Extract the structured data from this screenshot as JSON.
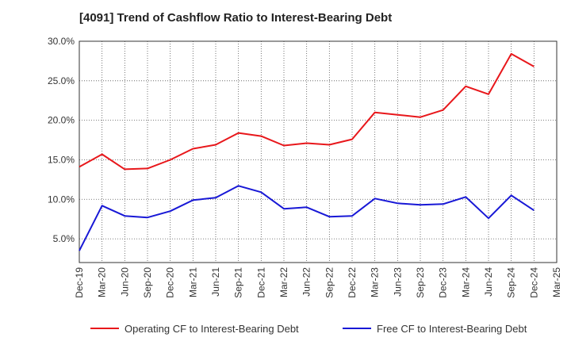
{
  "chart_data": {
    "type": "line",
    "title": "[4091]  Trend of Cashflow Ratio to Interest-Bearing Debt",
    "xlabel": "",
    "ylabel": "",
    "ylim": [
      2.0,
      30.0
    ],
    "y_ticks": [
      "5.0%",
      "10.0%",
      "15.0%",
      "20.0%",
      "25.0%",
      "30.0%"
    ],
    "y_tick_values": [
      5,
      10,
      15,
      20,
      25,
      30
    ],
    "grid": true,
    "legend_position": "bottom",
    "categories": [
      "Dec-19",
      "Mar-20",
      "Jun-20",
      "Sep-20",
      "Dec-20",
      "Mar-21",
      "Jun-21",
      "Sep-21",
      "Dec-21",
      "Mar-22",
      "Jun-22",
      "Sep-22",
      "Dec-22",
      "Mar-23",
      "Jun-23",
      "Sep-23",
      "Dec-23",
      "Mar-24",
      "Jun-24",
      "Sep-24",
      "Dec-24",
      "Mar-25"
    ],
    "series": [
      {
        "name": "Operating CF to Interest-Bearing Debt",
        "color": "#e8171b",
        "values": [
          14.1,
          15.7,
          13.8,
          13.9,
          15.0,
          16.4,
          16.9,
          18.4,
          18.0,
          16.8,
          17.1,
          16.9,
          17.6,
          21.0,
          20.7,
          20.4,
          21.3,
          24.3,
          23.3,
          28.4,
          26.8,
          null
        ]
      },
      {
        "name": "Free CF to Interest-Bearing Debt",
        "color": "#1818d6",
        "values": [
          3.5,
          9.2,
          7.9,
          7.7,
          8.5,
          9.9,
          10.2,
          11.7,
          10.9,
          8.8,
          9.0,
          7.8,
          7.9,
          10.1,
          9.5,
          9.3,
          9.4,
          10.3,
          7.6,
          10.5,
          8.6,
          null
        ]
      }
    ]
  }
}
